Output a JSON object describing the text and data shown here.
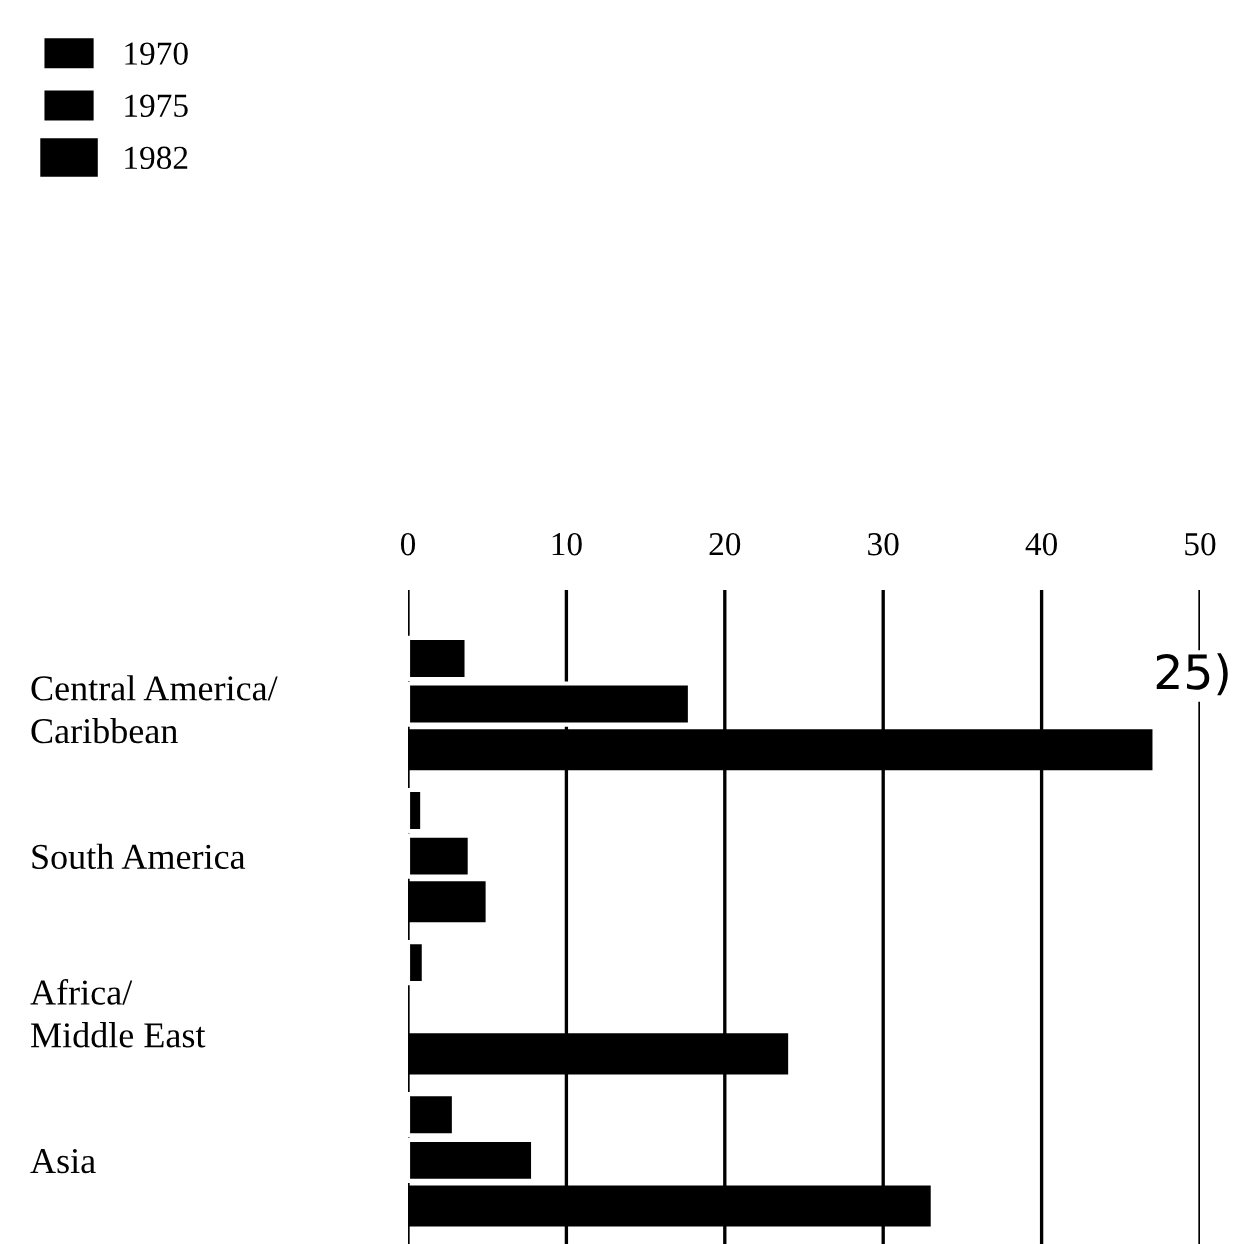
{
  "chart_data": {
    "type": "bar",
    "orientation": "horizontal",
    "categories": [
      "Central America/\nCaribbean",
      "South America",
      "Africa/\nMiddle East",
      "Asia"
    ],
    "series": [
      {
        "name": "1970",
        "color": "#000000",
        "values": [
          3.7,
          0.9,
          1.0,
          2.9
        ]
      },
      {
        "name": "1975",
        "color": "#000000",
        "values": [
          17.8,
          3.9,
          null,
          7.9
        ]
      },
      {
        "name": "1982",
        "color": "#000000",
        "values": [
          47,
          4.9,
          24,
          33
        ]
      }
    ],
    "xlim": [
      0,
      50
    ],
    "xticks": [
      0,
      10,
      20,
      30,
      40,
      50
    ],
    "grid": "x",
    "legend": "top left",
    "annotations": [
      "25)"
    ]
  }
}
